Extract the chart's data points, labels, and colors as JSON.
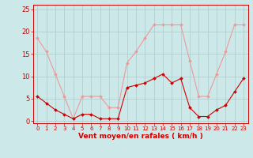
{
  "x": [
    0,
    1,
    2,
    3,
    4,
    5,
    6,
    7,
    8,
    9,
    10,
    11,
    12,
    13,
    14,
    15,
    16,
    17,
    18,
    19,
    20,
    21,
    22,
    23
  ],
  "wind_avg": [
    5.5,
    4.0,
    2.5,
    1.5,
    0.5,
    1.5,
    1.5,
    0.5,
    0.5,
    0.5,
    7.5,
    8.0,
    8.5,
    9.5,
    10.5,
    8.5,
    9.5,
    3.0,
    1.0,
    1.0,
    2.5,
    3.5,
    6.5,
    9.5
  ],
  "wind_gust": [
    18.5,
    15.5,
    10.5,
    5.5,
    0.5,
    5.5,
    5.5,
    5.5,
    3.0,
    3.0,
    13.0,
    15.5,
    18.5,
    21.5,
    21.5,
    21.5,
    21.5,
    13.5,
    5.5,
    5.5,
    10.5,
    15.5,
    21.5,
    21.5
  ],
  "wind_avg_color": "#cc0000",
  "wind_gust_color": "#ee9999",
  "bg_color": "#cce8e8",
  "grid_color": "#aacccc",
  "xlabel": "Vent moyen/en rafales ( km/h )",
  "xlabel_color": "#cc0000",
  "ylabel_ticks": [
    0,
    5,
    10,
    15,
    20,
    25
  ],
  "tick_color": "#cc0000",
  "axis_color": "#cc0000",
  "ylim": [
    -0.5,
    26
  ],
  "xlim": [
    -0.5,
    23.5
  ]
}
